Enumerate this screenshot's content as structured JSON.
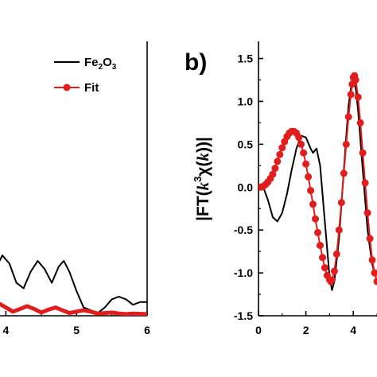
{
  "chart_data": [
    {
      "panel": "a",
      "type": "line",
      "visible_panel_label": "",
      "xlim": [
        3.5,
        6
      ],
      "ylim": [
        0,
        1
      ],
      "x_ticks": [
        "4",
        "5",
        "6"
      ],
      "x_tick_values": [
        4,
        5,
        6
      ],
      "legend": {
        "placement": "top-right",
        "entries": [
          {
            "name": "Fe",
            "sub": "2",
            "name2": "O",
            "sub2": "3",
            "style": "line",
            "color": "#000000"
          },
          {
            "name": "Fit",
            "sub": "",
            "name2": "",
            "sub2": "",
            "style": "line-marker",
            "color": "#e01e1e"
          }
        ]
      },
      "series": [
        {
          "name": "Fe2O3",
          "color": "#000000",
          "points": [
            [
              3.5,
              0.18
            ],
            [
              3.6,
              0.23
            ],
            [
              3.68,
              0.18
            ],
            [
              3.76,
              0.12
            ],
            [
              3.85,
              0.17
            ],
            [
              3.95,
              0.22
            ],
            [
              4.05,
              0.19
            ],
            [
              4.15,
              0.12
            ],
            [
              4.25,
              0.1
            ],
            [
              4.35,
              0.16
            ],
            [
              4.45,
              0.2
            ],
            [
              4.55,
              0.17
            ],
            [
              4.65,
              0.12
            ],
            [
              4.75,
              0.18
            ],
            [
              4.82,
              0.2
            ],
            [
              4.9,
              0.16
            ],
            [
              5.0,
              0.09
            ],
            [
              5.1,
              0.03
            ],
            [
              5.2,
              0.02
            ],
            [
              5.3,
              0.01
            ],
            [
              5.4,
              0.03
            ],
            [
              5.5,
              0.06
            ],
            [
              5.6,
              0.07
            ],
            [
              5.7,
              0.06
            ],
            [
              5.8,
              0.04
            ],
            [
              5.9,
              0.05
            ],
            [
              6.0,
              0.05
            ]
          ]
        },
        {
          "name": "Fit",
          "color": "#e01e1e",
          "points": [
            [
              3.5,
              0.04
            ],
            [
              3.6,
              0.035
            ],
            [
              3.7,
              0.025
            ],
            [
              3.8,
              0.04
            ],
            [
              3.9,
              0.045
            ],
            [
              4.0,
              0.03
            ],
            [
              4.1,
              0.015
            ],
            [
              4.2,
              0.025
            ],
            [
              4.3,
              0.035
            ],
            [
              4.4,
              0.025
            ],
            [
              4.5,
              0.012
            ],
            [
              4.6,
              0.022
            ],
            [
              4.7,
              0.03
            ],
            [
              4.8,
              0.02
            ],
            [
              4.9,
              0.01
            ],
            [
              5.0,
              0.015
            ],
            [
              5.1,
              0.02
            ],
            [
              5.2,
              0.015
            ],
            [
              5.3,
              0.008
            ],
            [
              5.4,
              0.01
            ],
            [
              5.5,
              0.012
            ],
            [
              5.6,
              0.008
            ],
            [
              5.7,
              0.006
            ],
            [
              5.8,
              0.008
            ],
            [
              5.9,
              0.007
            ],
            [
              6.0,
              0.006
            ]
          ]
        }
      ]
    },
    {
      "panel": "b",
      "type": "line",
      "visible_panel_label": "b)",
      "ylabel_prefix": "|FT(",
      "ylabel_k": "k",
      "ylabel_exp": "3",
      "ylabel_chi": "χ(",
      "ylabel_k2": "k",
      "ylabel_suffix": "))|",
      "xlim": [
        0,
        5
      ],
      "ylim": [
        -1.5,
        1.7
      ],
      "x_ticks": [
        "0",
        "2",
        "4"
      ],
      "x_tick_values": [
        0,
        2,
        4
      ],
      "y_ticks": [
        "-1.5",
        "-1.0",
        "-0.5",
        "0.0",
        "0.5",
        "1.0",
        "1.5"
      ],
      "y_tick_values": [
        -1.5,
        -1.0,
        -0.5,
        0.0,
        0.5,
        1.0,
        1.5
      ],
      "series": [
        {
          "name": "Fe2O3",
          "color": "#000000",
          "points": [
            [
              0,
              0
            ],
            [
              0.2,
              0.0
            ],
            [
              0.4,
              -0.15
            ],
            [
              0.6,
              -0.35
            ],
            [
              0.8,
              -0.4
            ],
            [
              1.0,
              -0.3
            ],
            [
              1.2,
              -0.08
            ],
            [
              1.4,
              0.2
            ],
            [
              1.6,
              0.45
            ],
            [
              1.8,
              0.6
            ],
            [
              2.0,
              0.58
            ],
            [
              2.2,
              0.45
            ],
            [
              2.3,
              0.4
            ],
            [
              2.45,
              0.45
            ],
            [
              2.6,
              0.25
            ],
            [
              2.8,
              -0.4
            ],
            [
              3.0,
              -1.05
            ],
            [
              3.1,
              -1.2
            ],
            [
              3.2,
              -1.1
            ],
            [
              3.4,
              -0.6
            ],
            [
              3.6,
              0.2
            ],
            [
              3.8,
              0.95
            ],
            [
              3.95,
              1.25
            ],
            [
              4.05,
              1.28
            ],
            [
              4.2,
              0.9
            ],
            [
              4.4,
              0.2
            ],
            [
              4.6,
              -0.5
            ],
            [
              4.8,
              -0.9
            ],
            [
              5.0,
              -1.1
            ]
          ]
        },
        {
          "name": "Fit",
          "color": "#e01e1e",
          "points": [
            [
              0,
              0
            ],
            [
              0.1,
              0.0
            ],
            [
              0.2,
              0.01
            ],
            [
              0.3,
              0.03
            ],
            [
              0.4,
              0.06
            ],
            [
              0.5,
              0.1
            ],
            [
              0.6,
              0.15
            ],
            [
              0.7,
              0.22
            ],
            [
              0.8,
              0.3
            ],
            [
              0.9,
              0.38
            ],
            [
              1.0,
              0.46
            ],
            [
              1.1,
              0.53
            ],
            [
              1.2,
              0.59
            ],
            [
              1.3,
              0.63
            ],
            [
              1.4,
              0.65
            ],
            [
              1.5,
              0.65
            ],
            [
              1.6,
              0.63
            ],
            [
              1.7,
              0.58
            ],
            [
              1.8,
              0.5
            ],
            [
              1.9,
              0.4
            ],
            [
              2.0,
              0.27
            ],
            [
              2.1,
              0.12
            ],
            [
              2.2,
              -0.04
            ],
            [
              2.3,
              -0.2
            ],
            [
              2.4,
              -0.37
            ],
            [
              2.5,
              -0.53
            ],
            [
              2.6,
              -0.68
            ],
            [
              2.7,
              -0.82
            ],
            [
              2.8,
              -0.94
            ],
            [
              2.9,
              -1.03
            ],
            [
              3.0,
              -1.08
            ],
            [
              3.05,
              -1.1
            ],
            [
              3.1,
              -1.08
            ],
            [
              3.2,
              -0.98
            ],
            [
              3.3,
              -0.78
            ],
            [
              3.4,
              -0.5
            ],
            [
              3.5,
              -0.18
            ],
            [
              3.6,
              0.16
            ],
            [
              3.7,
              0.5
            ],
            [
              3.8,
              0.82
            ],
            [
              3.9,
              1.08
            ],
            [
              3.95,
              1.2
            ],
            [
              4.0,
              1.28
            ],
            [
              4.05,
              1.3
            ],
            [
              4.1,
              1.25
            ],
            [
              4.2,
              1.05
            ],
            [
              4.3,
              0.75
            ],
            [
              4.4,
              0.4
            ],
            [
              4.5,
              0.05
            ],
            [
              4.6,
              -0.3
            ],
            [
              4.7,
              -0.6
            ],
            [
              4.8,
              -0.85
            ],
            [
              4.9,
              -1.0
            ],
            [
              5.0,
              -1.1
            ]
          ]
        }
      ]
    }
  ]
}
